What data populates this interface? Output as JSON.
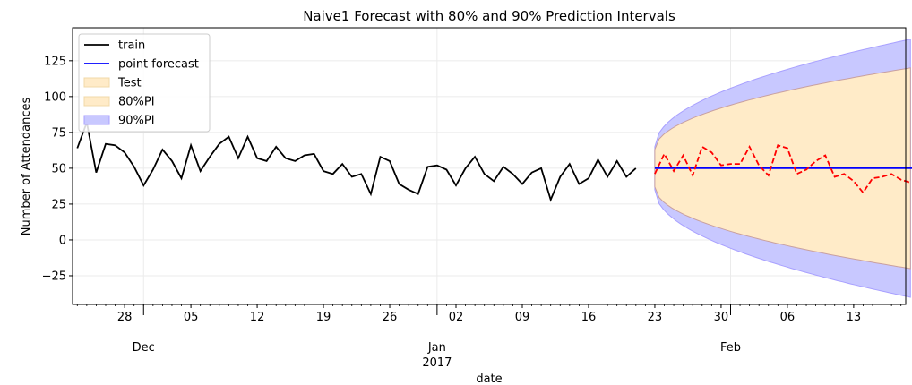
{
  "chart_data": {
    "type": "line",
    "title": "Naive1 Forecast with 80% and 90% Prediction Intervals",
    "xlabel": "date",
    "ylabel": "Number of Attendances",
    "ylim": [
      -45,
      148
    ],
    "xlim_days": [
      -7.5,
      80.5
    ],
    "grid": true,
    "legend_position": "upper-left",
    "day_ticks": [
      {
        "day": -2,
        "label": "28"
      },
      {
        "day": 5,
        "label": "05"
      },
      {
        "day": 12,
        "label": "12"
      },
      {
        "day": 19,
        "label": "19"
      },
      {
        "day": 26,
        "label": "26"
      },
      {
        "day": 33,
        "label": "02"
      },
      {
        "day": 40,
        "label": "09"
      },
      {
        "day": 47,
        "label": "16"
      },
      {
        "day": 54,
        "label": "23"
      },
      {
        "day": 61,
        "label": "30"
      },
      {
        "day": 68,
        "label": "06"
      },
      {
        "day": 75,
        "label": "13"
      }
    ],
    "month_ticks": [
      {
        "day": 0,
        "label": "Dec"
      },
      {
        "day": 31,
        "label": "Jan",
        "sub": "2017"
      },
      {
        "day": 62,
        "label": "Feb"
      }
    ],
    "y_ticks": [
      125,
      100,
      75,
      50,
      25,
      0,
      -25
    ],
    "y_tick_labels": [
      "125",
      "100",
      "75",
      "50",
      "25",
      "0",
      "−25"
    ],
    "legend": [
      {
        "label": "train",
        "kind": "line",
        "color": "#000000"
      },
      {
        "label": "point forecast",
        "kind": "line",
        "color": "#0000ff"
      },
      {
        "label": "Test",
        "kind": "patch",
        "color": "#ffebc8"
      },
      {
        "label": "80%PI",
        "kind": "patch",
        "color": "#ffebc8"
      },
      {
        "label": "90%PI",
        "kind": "patch",
        "color": "#c8c8ff"
      }
    ],
    "series": [
      {
        "name": "train",
        "color": "#000000",
        "style": "solid",
        "start_day": -7,
        "values": [
          64,
          82,
          47,
          67,
          66,
          61,
          51,
          38,
          49,
          63,
          55,
          43,
          66,
          48,
          58,
          67,
          72,
          57,
          72,
          57,
          55,
          65,
          57,
          55,
          59,
          60,
          48,
          46,
          53,
          44,
          46,
          32,
          58,
          55,
          39,
          35,
          32,
          51,
          52,
          49,
          38,
          50,
          58,
          46,
          41,
          51,
          46,
          39,
          47,
          50,
          28,
          44,
          53,
          39,
          43,
          56,
          44,
          55,
          44,
          50
        ]
      },
      {
        "name": "point forecast",
        "color": "#0000ff",
        "style": "solid",
        "start_day": 54,
        "values": [
          50,
          50
        ]
      },
      {
        "name": "Test",
        "color": "#ff0000",
        "style": "dashed",
        "start_day": 54,
        "values": [
          46,
          60,
          48,
          59,
          45,
          65,
          61,
          52,
          53,
          53,
          65,
          52,
          45,
          66,
          64,
          46,
          49,
          55,
          59,
          44,
          46,
          41,
          33,
          43,
          44,
          46,
          42,
          40
        ]
      }
    ],
    "intervals": [
      {
        "name": "90%PI",
        "color": "#c8c8ff",
        "edge": "#a8a0ff",
        "center": 50,
        "start_day": 54,
        "end_day": 81,
        "half_width_start": 15,
        "half_width_end": 90
      },
      {
        "name": "80%PI",
        "color": "#ffebc8",
        "edge": "#c8a0a0",
        "center": 50,
        "start_day": 54,
        "end_day": 81,
        "half_width_start": 13,
        "half_width_end": 70
      }
    ]
  }
}
